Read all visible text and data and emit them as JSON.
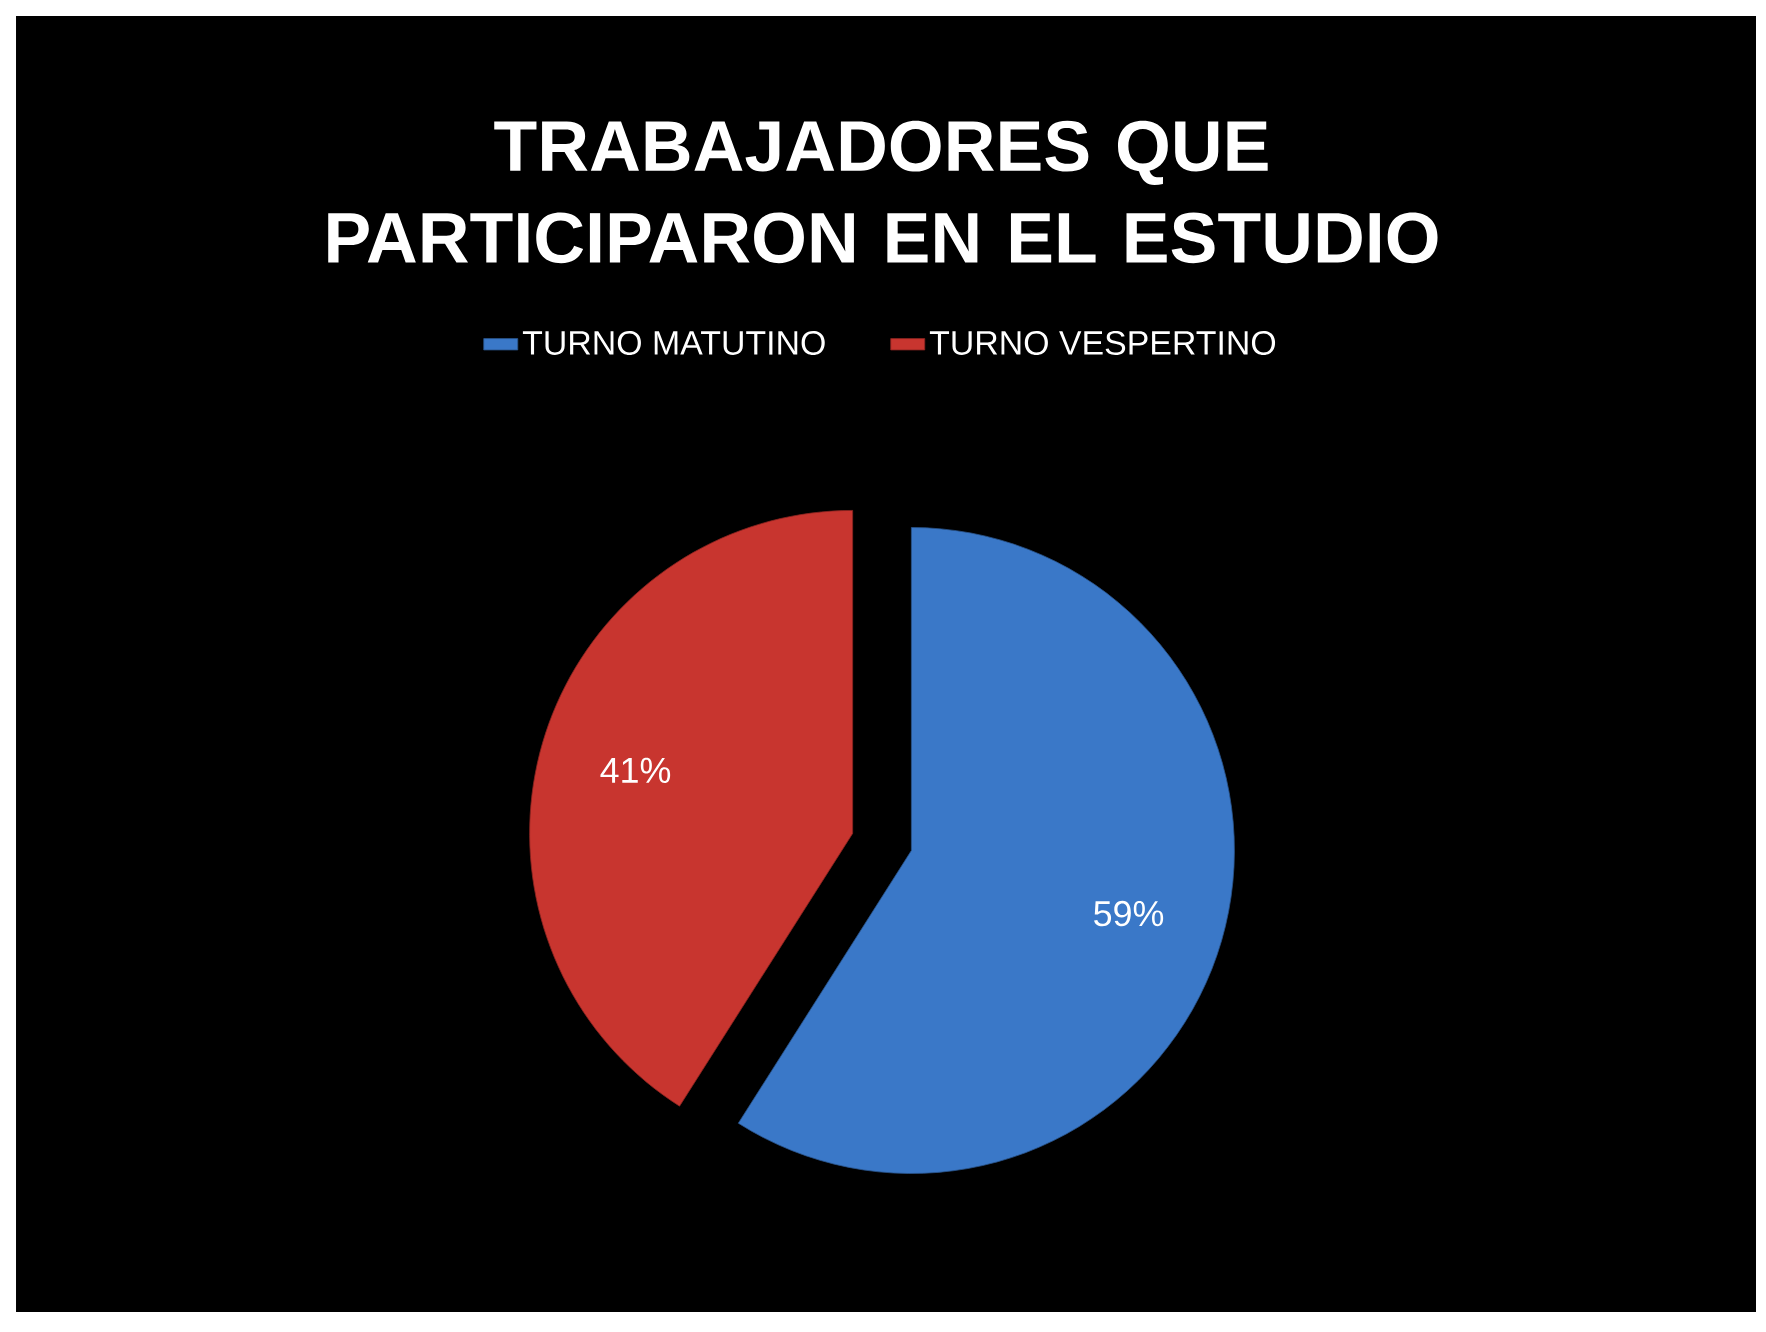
{
  "chart_data": {
    "type": "pie",
    "title": "TRABAJADORES QUE PARTICIPARON EN EL ESTUDIO",
    "categories": [
      "TURNO MATUTINO",
      "TURNO VESPERTINO"
    ],
    "values": [
      59,
      41
    ],
    "value_labels": [
      "59%",
      "41%"
    ],
    "colors": [
      "#3a78c8",
      "#c8352f"
    ],
    "legend": "top"
  }
}
